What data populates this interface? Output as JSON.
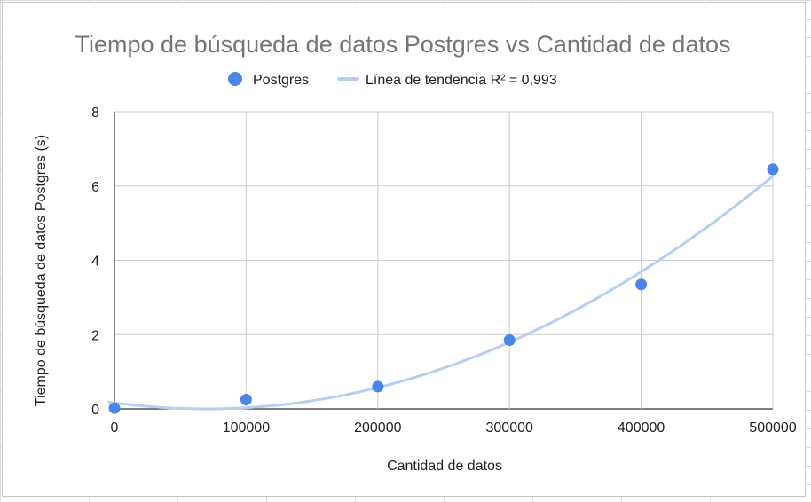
{
  "chart_data": {
    "type": "scatter",
    "title": "Tiempo de búsqueda de datos Postgres vs Cantidad de datos",
    "xlabel": "Cantidad de datos",
    "ylabel": "Tiempo de búsqueda de datos Postgres (s)",
    "xlim": [
      0,
      500000
    ],
    "ylim": [
      0,
      8
    ],
    "x_ticks": [
      "0",
      "100000",
      "200000",
      "300000",
      "400000",
      "500000"
    ],
    "y_ticks": [
      "0",
      "2",
      "4",
      "6",
      "8"
    ],
    "grid": true,
    "legend_position": "top",
    "series": [
      {
        "name": "Postgres",
        "color": "#4a86e8",
        "x": [
          0,
          100000,
          200000,
          300000,
          400000,
          500000
        ],
        "y": [
          0.02,
          0.25,
          0.6,
          1.85,
          3.35,
          6.45
        ]
      }
    ],
    "trendline": {
      "label": "Línea de tendencia R² = 0,993",
      "color": "#b9cef4",
      "type": "polynomial",
      "x_start": -5000
    }
  }
}
